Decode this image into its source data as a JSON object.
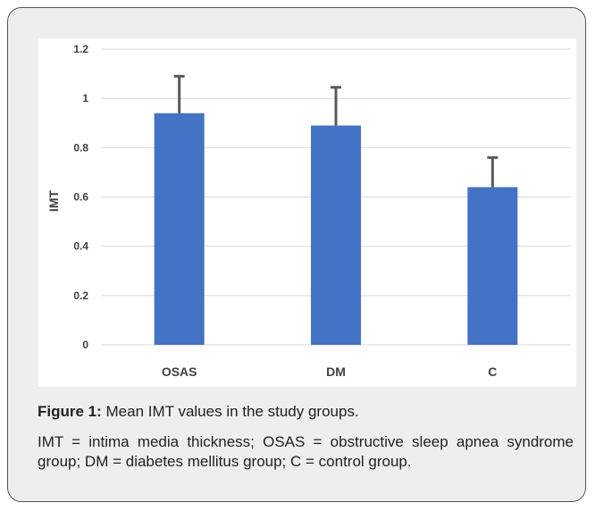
{
  "chart_data": {
    "type": "bar",
    "categories": [
      "OSAS",
      "DM",
      "C"
    ],
    "values": [
      0.94,
      0.89,
      0.64
    ],
    "error_bars": [
      0.15,
      0.155,
      0.12
    ],
    "ylabel": "IMT",
    "xlabel": "",
    "ylim": [
      0,
      1.2
    ],
    "yticks": [
      0,
      0.2,
      0.4,
      0.6,
      0.8,
      1,
      1.2
    ],
    "ytick_labels": [
      "0",
      "0.2",
      "0.4",
      "0.6",
      "0.8",
      "1",
      "1.2"
    ],
    "grid": true,
    "bar_color": "#4472c4",
    "error_color": "#595959"
  },
  "caption": {
    "label": "Figure 1:",
    "text": " Mean IMT values in the study groups."
  },
  "note": "IMT = intima media thickness; OSAS = obstructive sleep apnea syndrome group; DM = diabetes mellitus group; C = control group."
}
